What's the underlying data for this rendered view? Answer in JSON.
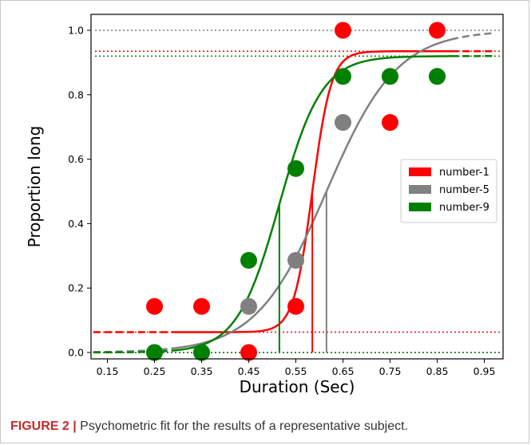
{
  "caption": {
    "figure_label": "FIGURE 2 |",
    "text": "Psychometric fit for the results of a representative subject."
  },
  "chart_data": {
    "type": "scatter",
    "xlabel": "Duration (Sec)",
    "ylabel": "Proportion long",
    "xlim": [
      0.1,
      1.0
    ],
    "ylim": [
      0.0,
      1.0
    ],
    "x_ticks": [
      "0.15",
      "0.25",
      "0.35",
      "0.45",
      "0.55",
      "0.65",
      "0.75",
      "0.85",
      "0.95"
    ],
    "y_ticks": [
      "0.0",
      "0.2",
      "0.4",
      "0.6",
      "0.8",
      "1.0"
    ],
    "legend_position": "right-center",
    "grid": false,
    "series": [
      {
        "name": "number-1",
        "color": "#ff0000",
        "points": [
          {
            "x": 0.25,
            "y": 0.143
          },
          {
            "x": 0.35,
            "y": 0.143
          },
          {
            "x": 0.45,
            "y": 0.0
          },
          {
            "x": 0.55,
            "y": 0.143
          },
          {
            "x": 0.65,
            "y": 1.0
          },
          {
            "x": 0.75,
            "y": 0.714
          },
          {
            "x": 0.85,
            "y": 1.0
          }
        ],
        "fit": {
          "guess_rate": 0.063,
          "lapse_upper": 0.935,
          "threshold": 0.585,
          "slope": 0.02
        },
        "upper_asymptote": 0.935,
        "lower_asymptote": 0.063
      },
      {
        "name": "number-5",
        "color": "#808080",
        "points": [
          {
            "x": 0.25,
            "y": 0.0
          },
          {
            "x": 0.35,
            "y": 0.0
          },
          {
            "x": 0.45,
            "y": 0.143
          },
          {
            "x": 0.55,
            "y": 0.286
          },
          {
            "x": 0.65,
            "y": 0.714
          },
          {
            "x": 0.75,
            "y": 0.857
          },
          {
            "x": 0.85,
            "y": 0.857
          }
        ],
        "fit": {
          "guess_rate": 0.0,
          "lapse_upper": 1.0,
          "threshold": 0.615,
          "slope": 0.075
        },
        "upper_asymptote": 1.0,
        "lower_asymptote": 0.0
      },
      {
        "name": "number-9",
        "color": "#008000",
        "points": [
          {
            "x": 0.25,
            "y": 0.0
          },
          {
            "x": 0.35,
            "y": 0.0
          },
          {
            "x": 0.45,
            "y": 0.286
          },
          {
            "x": 0.55,
            "y": 0.571
          },
          {
            "x": 0.65,
            "y": 0.857
          },
          {
            "x": 0.75,
            "y": 0.857
          },
          {
            "x": 0.85,
            "y": 0.857
          }
        ],
        "fit": {
          "guess_rate": 0.0,
          "lapse_upper": 0.92,
          "threshold": 0.515,
          "slope": 0.045
        },
        "upper_asymptote": 0.92,
        "lower_asymptote": 0.0
      }
    ]
  }
}
